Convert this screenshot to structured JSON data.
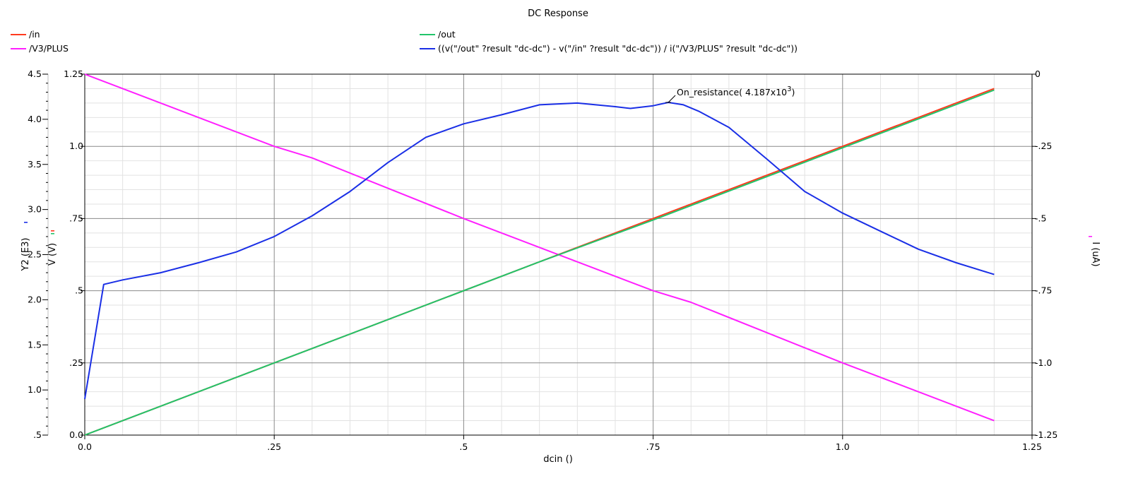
{
  "colors": {
    "in": "#ff3a1f",
    "out": "#22c46a",
    "v3plus": "#ff1fff",
    "expr": "#1a2fe6",
    "grid_major": "#8a8a8a",
    "grid_minor": "#e2e2e2",
    "axis": "#000000"
  },
  "chart_data": {
    "type": "line",
    "title": "DC Response",
    "xlabel": "dcin ()",
    "xlim": [
      0,
      1.25
    ],
    "x_ticks": [
      "0.0",
      ".25",
      ".5",
      ".75",
      "1.0",
      "1.25"
    ],
    "y_left_outer": {
      "label": "Y2 (E3)",
      "lim": [
        0.5,
        4.5
      ],
      "ticks": [
        ".5",
        "1.0",
        "1.5",
        "2.0",
        "2.5",
        "3.0",
        "3.5",
        "4.0",
        "4.5"
      ]
    },
    "y_left_inner": {
      "label": "V (V)",
      "lim": [
        0,
        1.25
      ],
      "ticks": [
        "0.0",
        ".25",
        ".5",
        ".75",
        "1.0",
        "1.25"
      ]
    },
    "y_right": {
      "label": "I (uA)",
      "lim": [
        -1.25,
        0
      ],
      "ticks": [
        "0",
        "-.25",
        "-.5",
        "-.75",
        "-1.0",
        "-1.25"
      ]
    },
    "grid": true,
    "legend_position": "top",
    "series": [
      {
        "key": "in",
        "name": "/in",
        "axis": "V",
        "color": "#ff3a1f",
        "x": [
          0,
          1.2
        ],
        "y": [
          0,
          1.2
        ]
      },
      {
        "key": "v3plus",
        "name": "/V3/PLUS",
        "axis": "I",
        "color": "#ff1fff",
        "x": [
          0,
          0.25,
          0.3,
          0.5,
          0.75,
          0.8,
          1.0,
          1.2
        ],
        "y": [
          0,
          -0.25,
          -0.29,
          -0.5,
          -0.75,
          -0.79,
          -1.0,
          -1.2
        ]
      },
      {
        "key": "out",
        "name": "/out",
        "axis": "V",
        "color": "#22c46a",
        "x": [
          0,
          0.6,
          0.75,
          1.0,
          1.2
        ],
        "y": [
          0,
          0.6,
          0.745,
          0.995,
          1.195
        ]
      },
      {
        "key": "expr",
        "name": "((v(\"/out\" ?result \"dc-dc\") - v(\"/in\" ?result \"dc-dc\")) / i(\"/V3/PLUS\" ?result \"dc-dc\"))",
        "axis": "Y2",
        "color": "#1a2fe6",
        "x": [
          0.0,
          0.025,
          0.05,
          0.1,
          0.15,
          0.2,
          0.25,
          0.3,
          0.35,
          0.4,
          0.45,
          0.5,
          0.55,
          0.6,
          0.65,
          0.7,
          0.72,
          0.75,
          0.77,
          0.79,
          0.81,
          0.85,
          0.9,
          0.95,
          1.0,
          1.05,
          1.1,
          1.15,
          1.2
        ],
        "y": [
          0.9,
          2.17,
          2.22,
          2.3,
          2.41,
          2.53,
          2.7,
          2.93,
          3.2,
          3.52,
          3.8,
          3.95,
          4.05,
          4.16,
          4.18,
          4.14,
          4.12,
          4.15,
          4.187,
          4.16,
          4.09,
          3.91,
          3.56,
          3.2,
          2.96,
          2.76,
          2.56,
          2.41,
          2.28
        ]
      }
    ],
    "annotations": [
      {
        "text": "On_resistance( 4.187x10",
        "superscript": "3",
        "suffix": ")",
        "x": 0.77,
        "y": 4.187,
        "axis": "Y2"
      }
    ]
  }
}
